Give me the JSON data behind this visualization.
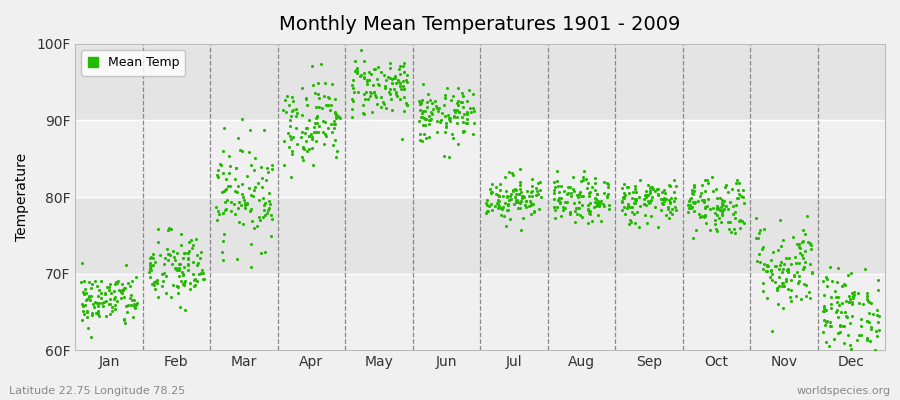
{
  "title": "Monthly Mean Temperatures 1901 - 2009",
  "ylabel": "Temperature",
  "xlabel_labels": [
    "Jan",
    "Feb",
    "Mar",
    "Apr",
    "May",
    "Jun",
    "Jul",
    "Aug",
    "Sep",
    "Oct",
    "Nov",
    "Dec"
  ],
  "ytick_labels": [
    "60F",
    "70F",
    "80F",
    "90F",
    "100F"
  ],
  "ytick_values": [
    60,
    70,
    80,
    90,
    100
  ],
  "ylim": [
    60,
    100
  ],
  "legend_label": "Mean Temp",
  "dot_color": "#22bb00",
  "bg_color": "#f0f0f0",
  "band_colors": [
    "#f0f0f0",
    "#e4e4e4"
  ],
  "footer_left": "Latitude 22.75 Longitude 78.25",
  "footer_right": "worldspecies.org",
  "monthly_means": [
    66.5,
    70.5,
    80.5,
    90.0,
    94.5,
    90.5,
    80.0,
    79.5,
    79.5,
    79.0,
    71.0,
    65.0
  ],
  "monthly_stds": [
    1.8,
    2.5,
    3.5,
    2.8,
    2.0,
    1.8,
    1.5,
    1.5,
    1.5,
    2.0,
    3.0,
    2.8
  ],
  "n_years": 109,
  "seed": 42
}
